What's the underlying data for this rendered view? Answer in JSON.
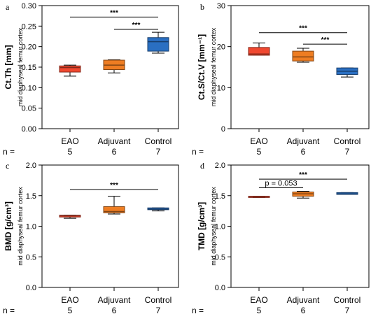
{
  "n_label": "n =",
  "colors": {
    "EAO": "#f04830",
    "Adjuvant": "#ee7d22",
    "Control": "#2a6fc2"
  },
  "chart_data": [
    {
      "panel": "a",
      "type": "box",
      "ylabel": "Ct.Th [mm]",
      "ysub": "mid diaphyseal femur cortex",
      "ylim": [
        0,
        0.3
      ],
      "yticks": [
        "0.00",
        "0.05",
        "0.10",
        "0.15",
        "0.20",
        "0.25",
        "0.30"
      ],
      "categories": [
        "EAO",
        "Adjuvant",
        "Control"
      ],
      "n": [
        "5",
        "6",
        "7"
      ],
      "boxes": [
        {
          "min": 0.128,
          "q1": 0.138,
          "median": 0.149,
          "q3": 0.153,
          "max": 0.155
        },
        {
          "min": 0.136,
          "q1": 0.144,
          "median": 0.155,
          "q3": 0.167,
          "max": 0.168
        },
        {
          "min": 0.184,
          "q1": 0.189,
          "median": 0.212,
          "q3": 0.222,
          "max": 0.235
        }
      ],
      "annotations": [
        {
          "from": 0,
          "to": 2,
          "y": 0.272,
          "label": "***"
        },
        {
          "from": 1,
          "to": 2,
          "y": 0.242,
          "label": "***"
        }
      ]
    },
    {
      "panel": "b",
      "type": "box",
      "ylabel": "Ct.S/Ct.V [mm⁻¹]",
      "ysub": "mid diaphyseal femur cortex",
      "ylim": [
        0,
        30
      ],
      "yticks": [
        "0",
        "10",
        "20",
        "30"
      ],
      "categories": [
        "EAO",
        "Adjuvant",
        "Control"
      ],
      "n": [
        "5",
        "6",
        "7"
      ],
      "boxes": [
        {
          "min": 17.9,
          "q1": 17.9,
          "median": 18.2,
          "q3": 19.8,
          "max": 20.9
        },
        {
          "min": 16.2,
          "q1": 16.5,
          "median": 17.5,
          "q3": 18.9,
          "max": 19.6
        },
        {
          "min": 12.6,
          "q1": 13.2,
          "median": 14.0,
          "q3": 14.8,
          "max": 14.8
        }
      ],
      "annotations": [
        {
          "from": 0,
          "to": 2,
          "y": 23.4,
          "label": "***"
        },
        {
          "from": 1,
          "to": 2,
          "y": 20.6,
          "label": "***"
        }
      ]
    },
    {
      "panel": "c",
      "type": "box",
      "ylabel": "BMD [g/cm³]",
      "ysub": "mid diaphyseal femur cortex",
      "ylim": [
        0,
        2.0
      ],
      "yticks": [
        "0.0",
        "0.5",
        "1.0",
        "1.5",
        "2.0"
      ],
      "categories": [
        "EAO",
        "Adjuvant",
        "Control"
      ],
      "n": [
        "5",
        "6",
        "7"
      ],
      "boxes": [
        {
          "min": 1.13,
          "q1": 1.15,
          "median": 1.17,
          "q3": 1.18,
          "max": 1.18
        },
        {
          "min": 1.2,
          "q1": 1.22,
          "median": 1.24,
          "q3": 1.32,
          "max": 1.49
        },
        {
          "min": 1.25,
          "q1": 1.27,
          "median": 1.28,
          "q3": 1.3,
          "max": 1.3
        }
      ],
      "annotations": [
        {
          "from": 0,
          "to": 2,
          "y": 1.6,
          "label": "***"
        }
      ]
    },
    {
      "panel": "d",
      "type": "box",
      "ylabel": "TMD [g/cm³]",
      "ysub": "mid diaphyseal femur cortex",
      "ylim": [
        0,
        2.0
      ],
      "yticks": [
        "0.0",
        "0.5",
        "1.0",
        "1.5",
        "2.0"
      ],
      "categories": [
        "EAO",
        "Adjuvant",
        "Control"
      ],
      "n": [
        "5",
        "6",
        "7"
      ],
      "boxes": [
        {
          "min": 1.47,
          "q1": 1.47,
          "median": 1.48,
          "q3": 1.49,
          "max": 1.49
        },
        {
          "min": 1.46,
          "q1": 1.49,
          "median": 1.53,
          "q3": 1.56,
          "max": 1.57
        },
        {
          "min": 1.52,
          "q1": 1.52,
          "median": 1.53,
          "q3": 1.55,
          "max": 1.55
        }
      ],
      "annotations": [
        {
          "from": 0,
          "to": 2,
          "y": 1.77,
          "label": "***"
        },
        {
          "from": 0,
          "to": 1,
          "y": 1.63,
          "label": "p = 0.053"
        }
      ]
    }
  ]
}
